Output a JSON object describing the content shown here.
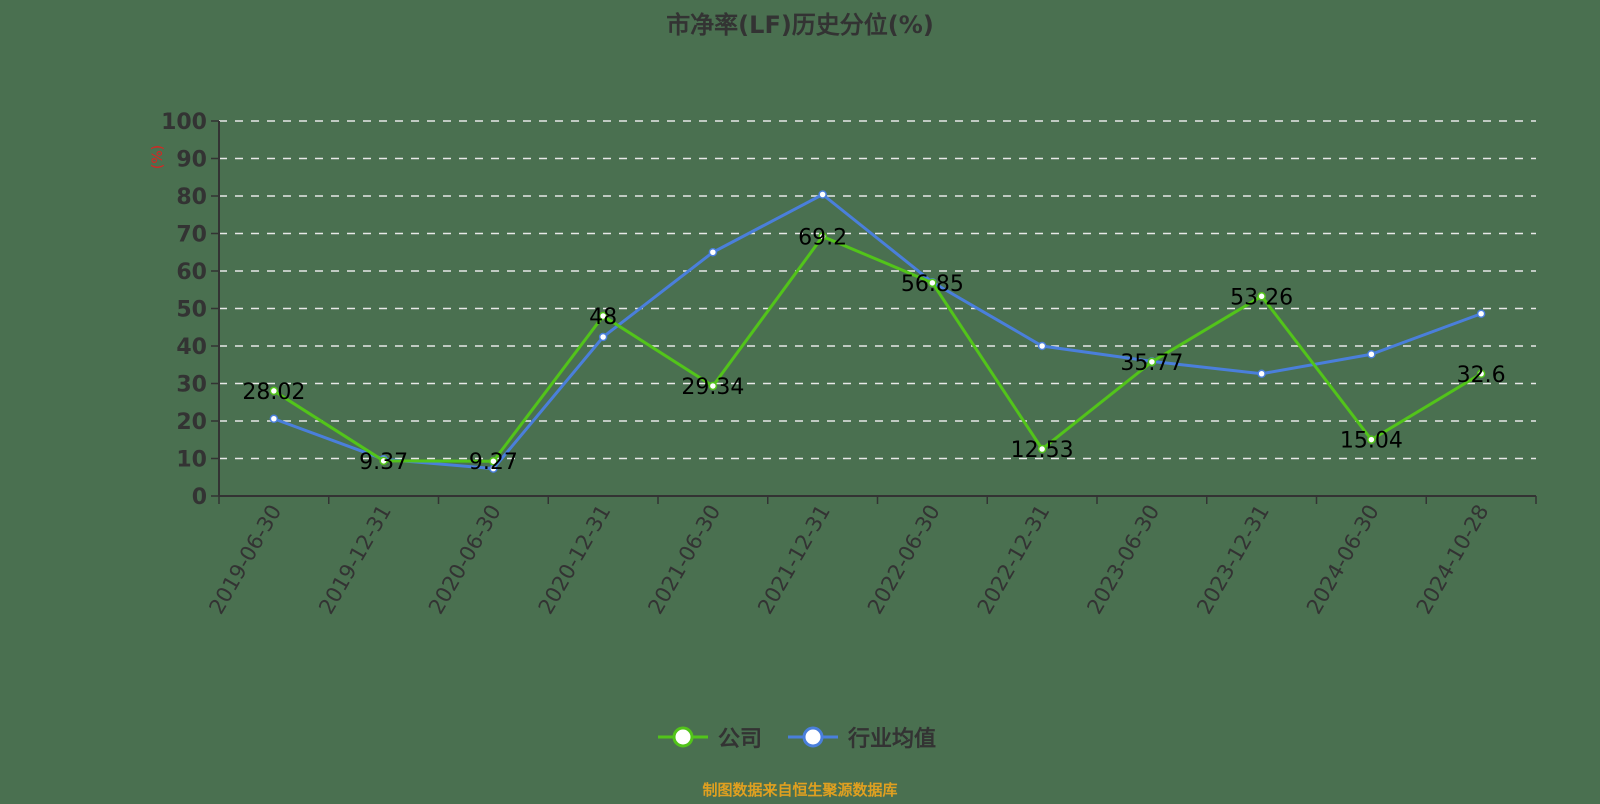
{
  "chart_data": {
    "type": "line",
    "title": "市净率(LF)历史分位(%)",
    "ylabel": "(%)",
    "ylim": [
      0,
      100
    ],
    "yticks": [
      0,
      10,
      20,
      30,
      40,
      50,
      60,
      70,
      80,
      90,
      100
    ],
    "grid": true,
    "legend_position": "bottom",
    "categories": [
      "2019-06-30",
      "2019-12-31",
      "2020-06-30",
      "2020-12-31",
      "2021-06-30",
      "2021-12-31",
      "2022-06-30",
      "2022-12-31",
      "2023-06-30",
      "2023-12-31",
      "2024-06-30",
      "2024-10-28"
    ],
    "series": [
      {
        "name": "公司",
        "color": "#52c41a",
        "values": [
          28.02,
          9.37,
          9.27,
          48,
          29.34,
          69.2,
          56.85,
          12.53,
          35.77,
          53.26,
          15.04,
          32.6
        ],
        "labels": true
      },
      {
        "name": "行业均值",
        "color": "#4a7fdb",
        "values": [
          20.6,
          9.8,
          7.3,
          42.4,
          65,
          80.4,
          57,
          40,
          35.9,
          32.6,
          37.8,
          48.6
        ],
        "labels": false
      }
    ]
  },
  "footer": {
    "source": "制图数据来自恒生聚源数据库",
    "color": "#e0a020"
  }
}
